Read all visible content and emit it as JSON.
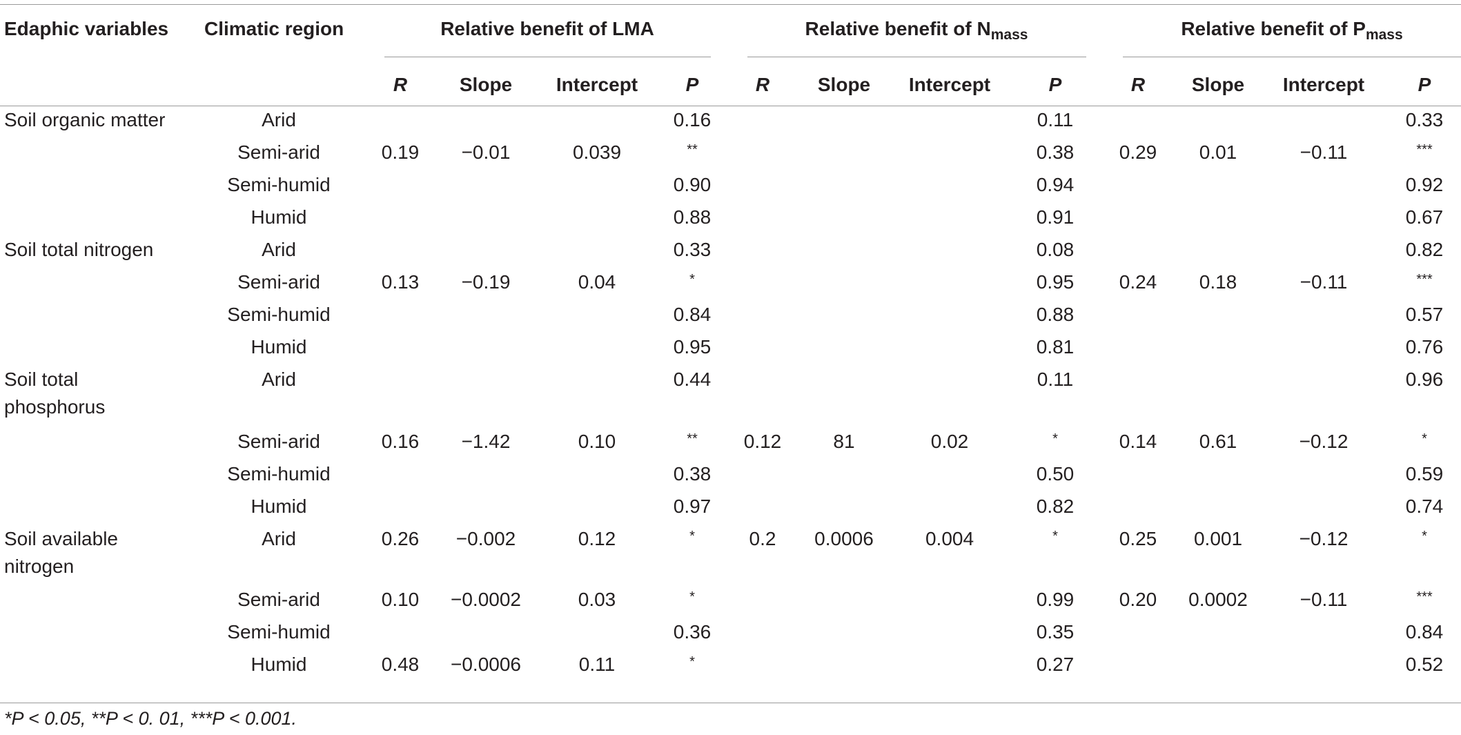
{
  "table": {
    "header": {
      "col_edaphic": "Edaphic variables",
      "col_climatic": "Climatic region",
      "group_lma": "Relative benefit of LMA",
      "group_nmass_prefix": "Relative benefit of N",
      "group_nmass_sub": "mass",
      "group_pmass_prefix": "Relative benefit of P",
      "group_pmass_sub": "mass",
      "sub_r": "R",
      "sub_slope": "Slope",
      "sub_intercept": "Intercept",
      "sub_p": "P"
    },
    "variables": [
      {
        "name_line1": "Soil organic matter",
        "name_line2": "",
        "rows": [
          {
            "region": "Arid",
            "lma": [
              "",
              "",
              "",
              "0.16"
            ],
            "n": [
              "",
              "",
              "",
              "0.11"
            ],
            "p": [
              "",
              "",
              "",
              "0.33"
            ]
          },
          {
            "region": "Semi-arid",
            "lma": [
              "0.19",
              "−0.01",
              "0.039",
              "**"
            ],
            "n": [
              "",
              "",
              "",
              "0.38"
            ],
            "p": [
              "0.29",
              "0.01",
              "−0.11",
              "***"
            ]
          },
          {
            "region": "Semi-humid",
            "lma": [
              "",
              "",
              "",
              "0.90"
            ],
            "n": [
              "",
              "",
              "",
              "0.94"
            ],
            "p": [
              "",
              "",
              "",
              "0.92"
            ]
          },
          {
            "region": "Humid",
            "lma": [
              "",
              "",
              "",
              "0.88"
            ],
            "n": [
              "",
              "",
              "",
              "0.91"
            ],
            "p": [
              "",
              "",
              "",
              "0.67"
            ]
          }
        ]
      },
      {
        "name_line1": "Soil total nitrogen",
        "name_line2": "",
        "rows": [
          {
            "region": "Arid",
            "lma": [
              "",
              "",
              "",
              "0.33"
            ],
            "n": [
              "",
              "",
              "",
              "0.08"
            ],
            "p": [
              "",
              "",
              "",
              "0.82"
            ]
          },
          {
            "region": "Semi-arid",
            "lma": [
              "0.13",
              "−0.19",
              "0.04",
              "*"
            ],
            "n": [
              "",
              "",
              "",
              "0.95"
            ],
            "p": [
              "0.24",
              "0.18",
              "−0.11",
              "***"
            ]
          },
          {
            "region": "Semi-humid",
            "lma": [
              "",
              "",
              "",
              "0.84"
            ],
            "n": [
              "",
              "",
              "",
              "0.88"
            ],
            "p": [
              "",
              "",
              "",
              "0.57"
            ]
          },
          {
            "region": "Humid",
            "lma": [
              "",
              "",
              "",
              "0.95"
            ],
            "n": [
              "",
              "",
              "",
              "0.81"
            ],
            "p": [
              "",
              "",
              "",
              "0.76"
            ]
          }
        ]
      },
      {
        "name_line1": "Soil total",
        "name_line2": "phosphorus",
        "rows": [
          {
            "region": "Arid",
            "lma": [
              "",
              "",
              "",
              "0.44"
            ],
            "n": [
              "",
              "",
              "",
              "0.11"
            ],
            "p": [
              "",
              "",
              "",
              "0.96"
            ]
          },
          {
            "region": "Semi-arid",
            "lma": [
              "0.16",
              "−1.42",
              "0.10",
              "**"
            ],
            "n": [
              "0.12",
              "81",
              "0.02",
              "*"
            ],
            "p": [
              "0.14",
              "0.61",
              "−0.12",
              "*"
            ]
          },
          {
            "region": "Semi-humid",
            "lma": [
              "",
              "",
              "",
              "0.38"
            ],
            "n": [
              "",
              "",
              "",
              "0.50"
            ],
            "p": [
              "",
              "",
              "",
              "0.59"
            ]
          },
          {
            "region": "Humid",
            "lma": [
              "",
              "",
              "",
              "0.97"
            ],
            "n": [
              "",
              "",
              "",
              "0.82"
            ],
            "p": [
              "",
              "",
              "",
              "0.74"
            ]
          }
        ]
      },
      {
        "name_line1": "Soil available",
        "name_line2": "nitrogen",
        "rows": [
          {
            "region": "Arid",
            "lma": [
              "0.26",
              "−0.002",
              "0.12",
              "*"
            ],
            "n": [
              "0.2",
              "0.0006",
              "0.004",
              "*"
            ],
            "p": [
              "0.25",
              "0.001",
              "−0.12",
              "*"
            ]
          },
          {
            "region": "Semi-arid",
            "lma": [
              "0.10",
              "−0.0002",
              "0.03",
              "*"
            ],
            "n": [
              "",
              "",
              "",
              "0.99"
            ],
            "p": [
              "0.20",
              "0.0002",
              "−0.11",
              "***"
            ]
          },
          {
            "region": "Semi-humid",
            "lma": [
              "",
              "",
              "",
              "0.36"
            ],
            "n": [
              "",
              "",
              "",
              "0.35"
            ],
            "p": [
              "",
              "",
              "",
              "0.84"
            ]
          },
          {
            "region": "Humid",
            "lma": [
              "0.48",
              "−0.0006",
              "0.11",
              "*"
            ],
            "n": [
              "",
              "",
              "",
              "0.27"
            ],
            "p": [
              "",
              "",
              "",
              "0.52"
            ]
          }
        ]
      }
    ],
    "footnote": "*P < 0.05, **P < 0. 01, ***P < 0.001."
  }
}
